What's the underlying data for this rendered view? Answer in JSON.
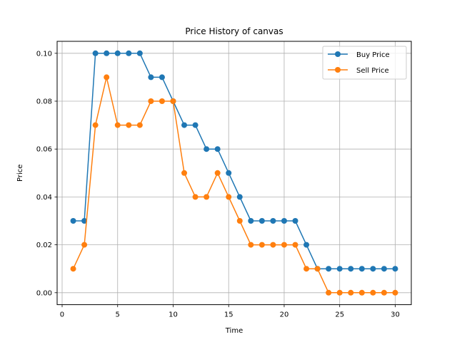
{
  "chart_data": {
    "type": "line",
    "title": "Price History of canvas",
    "xlabel": "Time",
    "ylabel": "Price",
    "xlim": [
      -0.45,
      31.45
    ],
    "ylim": [
      -0.005,
      0.105
    ],
    "xticks": [
      0,
      5,
      10,
      15,
      20,
      25,
      30
    ],
    "yticks": [
      0.0,
      0.02,
      0.04,
      0.06,
      0.08,
      0.1
    ],
    "ytick_labels": [
      "0.00",
      "0.02",
      "0.04",
      "0.06",
      "0.08",
      "0.10"
    ],
    "grid": true,
    "legend_position": "top-right",
    "x": [
      1,
      2,
      3,
      4,
      5,
      6,
      7,
      8,
      9,
      10,
      11,
      12,
      13,
      14,
      15,
      16,
      17,
      18,
      19,
      20,
      21,
      22,
      23,
      24,
      25,
      26,
      27,
      28,
      29,
      30
    ],
    "series": [
      {
        "name": "Buy Price",
        "color": "#1f77b4",
        "values": [
          0.03,
          0.03,
          0.1,
          0.1,
          0.1,
          0.1,
          0.1,
          0.09,
          0.09,
          0.08,
          0.07,
          0.07,
          0.06,
          0.06,
          0.05,
          0.04,
          0.03,
          0.03,
          0.03,
          0.03,
          0.03,
          0.02,
          0.01,
          0.01,
          0.01,
          0.01,
          0.01,
          0.01,
          0.01,
          0.01
        ]
      },
      {
        "name": "Sell Price",
        "color": "#ff7f0e",
        "values": [
          0.01,
          0.02,
          0.07,
          0.09,
          0.07,
          0.07,
          0.07,
          0.08,
          0.08,
          0.08,
          0.05,
          0.04,
          0.04,
          0.05,
          0.04,
          0.03,
          0.02,
          0.02,
          0.02,
          0.02,
          0.02,
          0.01,
          0.01,
          0.0,
          0.0,
          0.0,
          0.0,
          0.0,
          0.0,
          0.0
        ]
      }
    ]
  }
}
